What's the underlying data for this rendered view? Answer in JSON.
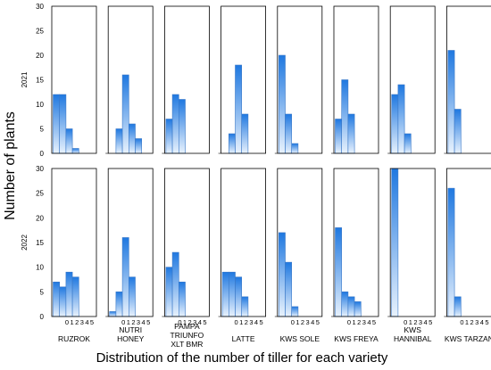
{
  "chart_data": {
    "type": "bar",
    "xlabel": "Distribution of the number of tiller for each variety",
    "ylabel": "Number of plants",
    "ylim": [
      0,
      30
    ],
    "y_ticks": [
      "0",
      "5",
      "10",
      "15",
      "20",
      "25",
      "30"
    ],
    "x_categories": [
      "0",
      "1",
      "2",
      "3",
      "4",
      "5"
    ],
    "rows": [
      "2021",
      "2022"
    ],
    "varieties": [
      {
        "label_lines": [
          "RUZROK"
        ]
      },
      {
        "label_lines": [
          "NUTRI",
          "HONEY"
        ]
      },
      {
        "label_lines": [
          "PAMPA",
          "TRIUNFO",
          "XLT BMR"
        ]
      },
      {
        "label_lines": [
          "LATTE"
        ]
      },
      {
        "label_lines": [
          "KWS SOLE"
        ]
      },
      {
        "label_lines": [
          "KWS FREYA"
        ]
      },
      {
        "label_lines": [
          "KWS",
          "HANNIBAL"
        ]
      },
      {
        "label_lines": [
          "KWS TARZAN"
        ]
      }
    ],
    "values": {
      "2021": [
        [
          12,
          12,
          5,
          1,
          0,
          0
        ],
        [
          0,
          5,
          16,
          6,
          3,
          0
        ],
        [
          7,
          12,
          11,
          0,
          0,
          0
        ],
        [
          0,
          4,
          18,
          8,
          0,
          0
        ],
        [
          20,
          8,
          2,
          0,
          0,
          0
        ],
        [
          7,
          15,
          8,
          0,
          0,
          0
        ],
        [
          12,
          14,
          4,
          0,
          0,
          0
        ],
        [
          21,
          9,
          0,
          0,
          0,
          0
        ]
      ],
      "2022": [
        [
          7,
          6,
          9,
          8,
          0,
          0
        ],
        [
          1,
          5,
          16,
          8,
          0,
          0
        ],
        [
          10,
          13,
          7,
          0,
          0,
          0
        ],
        [
          9,
          9,
          8,
          4,
          0,
          0
        ],
        [
          17,
          11,
          2,
          0,
          0,
          0
        ],
        [
          18,
          5,
          4,
          3,
          0,
          0
        ],
        [
          30,
          0,
          0,
          0,
          0,
          0
        ],
        [
          26,
          4,
          0,
          0,
          0,
          0
        ]
      ]
    },
    "colors": {
      "bar_dark": "#1f78e0",
      "bar_light": "#e8f2fd",
      "outline": "#3a78c7"
    },
    "grid": false
  }
}
